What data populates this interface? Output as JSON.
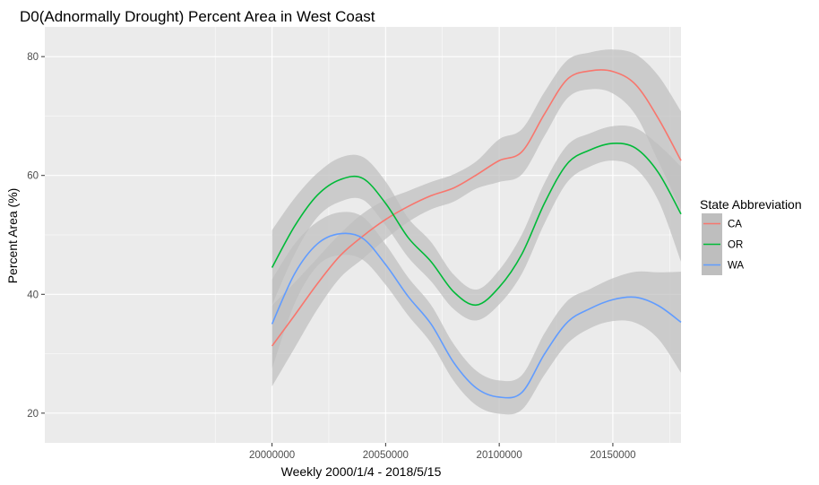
{
  "chart_data": {
    "type": "line",
    "subtype": "smoothed lines with confidence ribbons",
    "title": "D0(Adnormally Drought) Percent Area in West Coast",
    "xlabel": "Weekly 2000/1/4 - 2018/5/15",
    "ylabel": "Percent Area (%)",
    "xlim": [
      19900000,
      20180000
    ],
    "ylim": [
      15,
      85
    ],
    "x_ticks": [
      20000000,
      20050000,
      20100000,
      20150000
    ],
    "x_tick_labels": [
      "20000000",
      "20050000",
      "20100000",
      "20150000"
    ],
    "y_ticks": [
      20,
      40,
      60,
      80
    ],
    "y_tick_labels": [
      "20",
      "40",
      "60",
      "80"
    ],
    "grid": true,
    "background": "#ebebeb",
    "ribbon_color": "#bebebe",
    "legend": {
      "title": "State Abbreviation",
      "position": "right",
      "entries": [
        "CA",
        "OR",
        "WA"
      ]
    },
    "series": [
      {
        "name": "CA",
        "color": "#f8766d",
        "x": [
          20000000,
          20010000,
          20020000,
          20030000,
          20040000,
          20050000,
          20060000,
          20070000,
          20080000,
          20090000,
          20100000,
          20110000,
          20120000,
          20130000,
          20140000,
          20150000,
          20160000,
          20170000,
          20180000
        ],
        "y": [
          31.3,
          36.5,
          41.8,
          46.5,
          49.8,
          52.6,
          54.8,
          56.6,
          57.9,
          60.1,
          62.5,
          64.0,
          70.4,
          76.2,
          77.6,
          77.5,
          75.3,
          69.6,
          62.5
        ],
        "lower": [
          24.5,
          31.0,
          37.5,
          42.8,
          46.0,
          49.3,
          52.2,
          54.3,
          55.6,
          57.8,
          58.9,
          60.2,
          66.7,
          73.0,
          74.5,
          73.8,
          70.2,
          62.4,
          54.2
        ],
        "upper": [
          38.1,
          42.0,
          46.1,
          50.2,
          53.6,
          55.9,
          57.4,
          58.9,
          60.2,
          62.4,
          66.1,
          67.8,
          74.1,
          79.4,
          80.7,
          81.2,
          80.4,
          76.8,
          70.8
        ]
      },
      {
        "name": "OR",
        "color": "#00ba38",
        "x": [
          20000000,
          20010000,
          20020000,
          20030000,
          20040000,
          20050000,
          20060000,
          20070000,
          20080000,
          20090000,
          20100000,
          20110000,
          20120000,
          20130000,
          20140000,
          20150000,
          20160000,
          20170000,
          20180000
        ],
        "y": [
          44.5,
          51.5,
          56.7,
          59.3,
          59.5,
          55.3,
          49.5,
          45.5,
          40.4,
          38.2,
          41.2,
          46.8,
          55.4,
          62.0,
          64.3,
          65.4,
          64.6,
          60.5,
          53.5
        ],
        "lower": [
          38.2,
          46.8,
          53.0,
          55.6,
          55.9,
          51.6,
          46.2,
          42.2,
          37.5,
          35.6,
          38.3,
          43.5,
          52.0,
          58.9,
          61.5,
          62.5,
          61.2,
          55.8,
          45.5
        ],
        "upper": [
          50.8,
          56.2,
          60.4,
          63.0,
          63.1,
          59.0,
          52.8,
          48.8,
          43.3,
          40.8,
          44.1,
          50.1,
          58.8,
          65.1,
          67.1,
          68.3,
          68.0,
          65.2,
          61.5
        ]
      },
      {
        "name": "WA",
        "color": "#619cff",
        "x": [
          20000000,
          20010000,
          20020000,
          20030000,
          20040000,
          20050000,
          20060000,
          20070000,
          20080000,
          20090000,
          20100000,
          20110000,
          20120000,
          20130000,
          20140000,
          20150000,
          20160000,
          20170000,
          20180000
        ],
        "y": [
          35.0,
          43.5,
          48.5,
          50.2,
          49.4,
          45.0,
          39.6,
          35.0,
          28.5,
          24.2,
          22.7,
          23.5,
          30.0,
          35.3,
          37.6,
          39.1,
          39.5,
          38.1,
          35.3
        ],
        "lower": [
          27.5,
          38.5,
          44.8,
          46.6,
          45.8,
          41.6,
          36.4,
          31.8,
          25.4,
          21.3,
          19.9,
          20.6,
          26.5,
          31.7,
          34.3,
          35.5,
          35.2,
          32.5,
          26.8
        ],
        "upper": [
          42.5,
          48.5,
          52.2,
          53.8,
          53.0,
          48.4,
          42.8,
          38.2,
          31.6,
          27.1,
          25.5,
          26.4,
          33.5,
          38.9,
          40.9,
          42.7,
          43.8,
          43.7,
          43.8
        ]
      }
    ]
  }
}
